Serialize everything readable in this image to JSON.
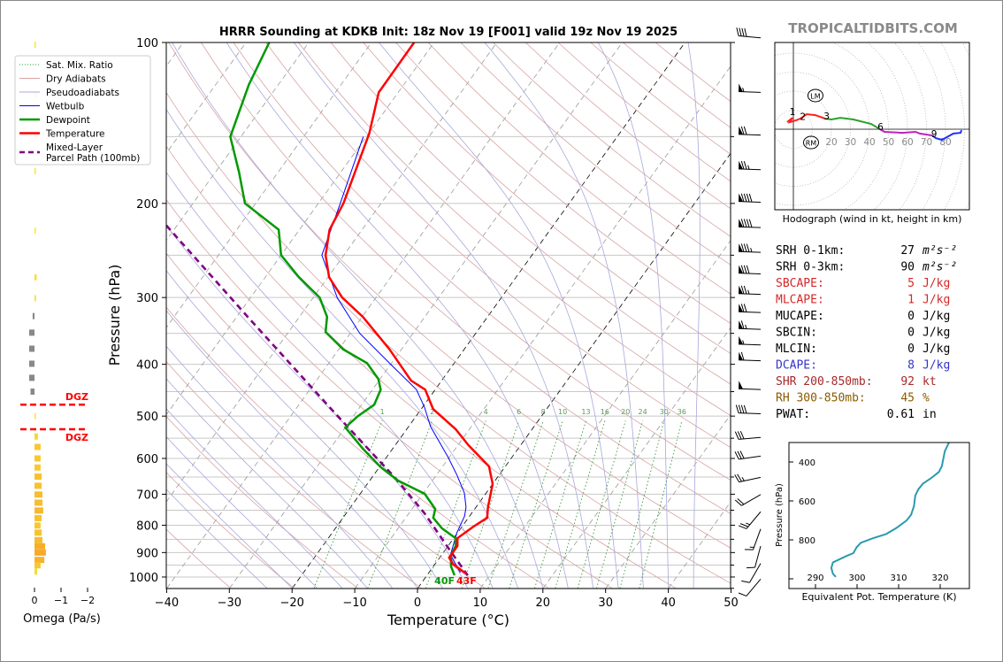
{
  "title": "HRRR Sounding at KDKB Init: 18z Nov 19 [F001] valid 19z Nov 19 2025",
  "watermark": "TROPICALTIDBITS.COM",
  "legend": [
    {
      "label": "Sat. Mix. Ratio",
      "color": "#2ca02c",
      "style": "dotted"
    },
    {
      "label": "Dry Adiabats",
      "color": "#d9a3a3",
      "style": "solid"
    },
    {
      "label": "Pseudoadiabats",
      "color": "#a8a8dc",
      "style": "solid"
    },
    {
      "label": "Wetbulb",
      "color": "#0000ff",
      "style": "thin"
    },
    {
      "label": "Dewpoint",
      "color": "#009900",
      "style": "thick"
    },
    {
      "label": "Temperature",
      "color": "#ff0000",
      "style": "thick"
    },
    {
      "label": "Mixed-Layer",
      "label2": "Parcel Path (100mb)",
      "color": "#800080",
      "style": "dashed"
    }
  ],
  "stats": [
    {
      "label": "SRH 0-1km:",
      "value": "27",
      "unit": "m²s⁻²",
      "color": "#000000"
    },
    {
      "label": "SRH 0-3km:",
      "value": "90",
      "unit": "m²s⁻²",
      "color": "#000000"
    },
    {
      "label": "SBCAPE:",
      "value": "5",
      "unit": "J/kg",
      "color": "#d62728"
    },
    {
      "label": "MLCAPE:",
      "value": "1",
      "unit": "J/kg",
      "color": "#d62728"
    },
    {
      "label": "MUCAPE:",
      "value": "0",
      "unit": "J/kg",
      "color": "#000000"
    },
    {
      "label": "SBCIN:",
      "value": "0",
      "unit": "J/kg",
      "color": "#000000"
    },
    {
      "label": "MLCIN:",
      "value": "0",
      "unit": "J/kg",
      "color": "#000000"
    },
    {
      "label": "DCAPE:",
      "value": "8",
      "unit": "J/kg",
      "color": "#3333cc"
    },
    {
      "label": "SHR 200-850mb:",
      "value": "92",
      "unit": "kt",
      "color": "#a52a2a"
    },
    {
      "label": "RH 300-850mb:",
      "value": "45",
      "unit": "%",
      "color": "#8b5a00"
    },
    {
      "label": "PWAT:",
      "value": "0.61",
      "unit": "in",
      "color": "#000000"
    }
  ],
  "chart_data": {
    "skewt": {
      "type": "line",
      "xlabel": "Temperature (°C)",
      "ylabel": "Pressure (hPa)",
      "xlim": [
        -40,
        50
      ],
      "ylim": [
        1050,
        100
      ],
      "xticks": [
        "−40",
        "−30",
        "−20",
        "−10",
        "0",
        "10",
        "20",
        "30",
        "40",
        "50"
      ],
      "xtick_values": [
        -40,
        -30,
        -20,
        -10,
        0,
        10,
        20,
        30,
        40,
        50
      ],
      "yticks": [
        100,
        200,
        300,
        400,
        500,
        600,
        700,
        800,
        900,
        1000
      ],
      "mixing_ratio_labels": [
        1,
        2,
        4,
        6,
        8,
        10,
        13,
        16,
        20,
        24,
        30,
        36
      ],
      "surface_td_label": "40F",
      "surface_t_label": "43F",
      "temperature": [
        [
          100,
          -63.2
        ],
        [
          124,
          -63.1
        ],
        [
          148,
          -59.9
        ],
        [
          200,
          -56.0
        ],
        [
          224,
          -55.2
        ],
        [
          250,
          -52.9
        ],
        [
          275,
          -49.8
        ],
        [
          300,
          -45.4
        ],
        [
          326,
          -39.9
        ],
        [
          375,
          -31.9
        ],
        [
          429,
          -24.9
        ],
        [
          446,
          -21.6
        ],
        [
          485,
          -18.1
        ],
        [
          529,
          -12.2
        ],
        [
          567,
          -8.3
        ],
        [
          621,
          -2.6
        ],
        [
          670,
          0.0
        ],
        [
          740,
          1.9
        ],
        [
          775,
          3.0
        ],
        [
          805,
          1.8
        ],
        [
          846,
          0.6
        ],
        [
          875,
          1.5
        ],
        [
          920,
          1.5
        ],
        [
          945,
          2.8
        ],
        [
          985,
          6.0
        ]
      ],
      "dewpoint": [
        [
          100,
          -86.3
        ],
        [
          120,
          -84.7
        ],
        [
          150,
          -81.7
        ],
        [
          175,
          -76.2
        ],
        [
          200,
          -71.7
        ],
        [
          224,
          -63.3
        ],
        [
          250,
          -60.0
        ],
        [
          274,
          -54.8
        ],
        [
          300,
          -49.0
        ],
        [
          326,
          -45.6
        ],
        [
          348,
          -44.1
        ],
        [
          375,
          -39.3
        ],
        [
          398,
          -33.9
        ],
        [
          426,
          -30.3
        ],
        [
          446,
          -28.7
        ],
        [
          476,
          -28.0
        ],
        [
          500,
          -29.3
        ],
        [
          525,
          -30.0
        ],
        [
          575,
          -24.8
        ],
        [
          623,
          -19.8
        ],
        [
          660,
          -15.5
        ],
        [
          699,
          -9.7
        ],
        [
          746,
          -6.3
        ],
        [
          775,
          -5.6
        ],
        [
          811,
          -3.0
        ],
        [
          846,
          0.3
        ],
        [
          875,
          1.2
        ],
        [
          909,
          1.5
        ],
        [
          955,
          2.8
        ],
        [
          993,
          4.4
        ]
      ],
      "wetbulb": [
        [
          150,
          -60.5
        ],
        [
          200,
          -56.5
        ],
        [
          250,
          -53.5
        ],
        [
          300,
          -46.2
        ],
        [
          350,
          -38.5
        ],
        [
          400,
          -30.0
        ],
        [
          446,
          -23.0
        ],
        [
          481,
          -19.7
        ],
        [
          523,
          -16.5
        ],
        [
          598,
          -10.1
        ],
        [
          645,
          -6.7
        ],
        [
          696,
          -3.5
        ],
        [
          740,
          -1.6
        ],
        [
          769,
          -0.8
        ],
        [
          827,
          -0.1
        ],
        [
          909,
          1.4
        ],
        [
          981,
          5.0
        ]
      ],
      "parcel": [
        [
          220,
          -81.7
        ],
        [
          329,
          -57.7
        ],
        [
          496,
          -33.0
        ],
        [
          653,
          -16.2
        ],
        [
          760,
          -7.5
        ],
        [
          885,
          0.4
        ],
        [
          993,
          6.5
        ]
      ],
      "dgz": [
        476,
        529
      ],
      "dgz_label": "DGZ",
      "wind_barbs": [
        [
          98,
          40,
          275
        ],
        [
          124,
          55,
          272
        ],
        [
          149,
          70,
          272
        ],
        [
          173,
          75,
          272
        ],
        [
          199,
          90,
          272
        ],
        [
          222,
          90,
          272
        ],
        [
          247,
          85,
          272
        ],
        [
          271,
          80,
          272
        ],
        [
          296,
          75,
          272
        ],
        [
          320,
          70,
          272
        ],
        [
          344,
          65,
          272
        ],
        [
          368,
          55,
          272
        ],
        [
          394,
          60,
          272
        ],
        [
          446,
          50,
          272
        ],
        [
          495,
          40,
          272
        ],
        [
          548,
          30,
          265
        ],
        [
          594,
          30,
          262
        ],
        [
          651,
          25,
          258
        ],
        [
          701,
          20,
          240
        ],
        [
          755,
          25,
          220
        ],
        [
          813,
          15,
          200
        ],
        [
          875,
          10,
          195
        ],
        [
          943,
          10,
          210
        ],
        [
          1009,
          10,
          220
        ]
      ]
    },
    "omega": {
      "type": "bar",
      "xlabel": "Omega (Pa/s)",
      "xticks": [
        "0",
        "−1",
        "−2"
      ],
      "xtick_values": [
        0,
        -1,
        -2
      ],
      "levels": [
        [
          101,
          -0.05
        ],
        [
          125,
          -0.08
        ],
        [
          149,
          -0.06
        ],
        [
          174,
          -0.05
        ],
        [
          225,
          -0.03
        ],
        [
          275,
          -0.08
        ],
        [
          301,
          -0.06
        ],
        [
          325,
          0.07
        ],
        [
          349,
          0.2
        ],
        [
          374,
          0.2
        ],
        [
          399,
          0.2
        ],
        [
          424,
          0.2
        ],
        [
          450,
          0.15
        ],
        [
          500,
          -0.05
        ],
        [
          546,
          -0.13
        ],
        [
          571,
          -0.23
        ],
        [
          600,
          -0.23
        ],
        [
          624,
          -0.23
        ],
        [
          649,
          -0.27
        ],
        [
          675,
          -0.27
        ],
        [
          701,
          -0.3
        ],
        [
          726,
          -0.3
        ],
        [
          751,
          -0.33
        ],
        [
          776,
          -0.27
        ],
        [
          801,
          -0.23
        ],
        [
          826,
          -0.27
        ],
        [
          853,
          -0.3
        ],
        [
          876,
          -0.4
        ],
        [
          900,
          -0.43
        ],
        [
          929,
          -0.37
        ],
        [
          951,
          -0.23
        ],
        [
          977,
          -0.1
        ]
      ]
    },
    "hodograph": {
      "type": "line",
      "caption": "Hodograph (wind in kt, height in km)",
      "ring_labels": [
        "20",
        "30",
        "40",
        "50",
        "60",
        "70",
        "80"
      ],
      "ring_values": [
        20,
        30,
        40,
        50,
        60,
        70,
        80
      ],
      "segments": [
        {
          "km": "0-3",
          "color": "#ff2020",
          "points": [
            [
              -3.3,
              3.7
            ],
            [
              -0.5,
              6.0
            ],
            [
              -1.9,
              3.7
            ],
            [
              1.4,
              4.7
            ],
            [
              3.7,
              5.6
            ],
            [
              7.0,
              7.9
            ],
            [
              11.6,
              7.4
            ],
            [
              16.7,
              5.6
            ]
          ]
        },
        {
          "km": "3-6",
          "color": "#2ca02c",
          "points": [
            [
              16.7,
              5.6
            ],
            [
              20.0,
              5.1
            ],
            [
              24.7,
              6.0
            ],
            [
              31.6,
              5.1
            ],
            [
              40.9,
              2.8
            ],
            [
              45.6,
              0.0
            ]
          ]
        },
        {
          "km": "6-9",
          "color": "#c020c0",
          "points": [
            [
              45.6,
              0.0
            ],
            [
              47.9,
              -1.4
            ],
            [
              57.2,
              -1.9
            ],
            [
              64.2,
              -1.4
            ],
            [
              66.5,
              -2.3
            ],
            [
              73.0,
              -3.3
            ]
          ]
        },
        {
          "km": "9-12",
          "color": "#2030ff",
          "points": [
            [
              73.0,
              -3.3
            ],
            [
              74.9,
              -4.7
            ],
            [
              78.1,
              -5.6
            ],
            [
              84.2,
              -2.3
            ],
            [
              87.9,
              -1.9
            ],
            [
              88.4,
              -0.5
            ]
          ]
        }
      ],
      "height_labels": [
        {
          "km": "1",
          "u": -0.5,
          "v": 7.5
        },
        {
          "km": "2",
          "u": 5.0,
          "v": 5.0
        },
        {
          "km": "3",
          "u": 17.5,
          "v": 5.2
        },
        {
          "km": "6",
          "u": 45.8,
          "v": -0.5
        },
        {
          "km": "9",
          "u": 74.0,
          "v": -4.2
        }
      ],
      "storm_motion": [
        {
          "label": "LM",
          "u": 11.6,
          "v": 17.7
        },
        {
          "label": "RM",
          "u": 9.3,
          "v": -7.0
        }
      ]
    },
    "theta_e": {
      "type": "line",
      "xlabel": "Equivalent Pot. Temperature (K)",
      "ylabel": "Pressure (hPa)",
      "xticks": [
        290,
        300,
        310,
        320
      ],
      "yticks": [
        400,
        600,
        800
      ],
      "color": "#2a9aaf",
      "points": [
        [
          300,
          322.1
        ],
        [
          345,
          321.1
        ],
        [
          421,
          320.4
        ],
        [
          451,
          319.7
        ],
        [
          482,
          317.9
        ],
        [
          512,
          315.8
        ],
        [
          542,
          314.7
        ],
        [
          573,
          314.0
        ],
        [
          626,
          313.7
        ],
        [
          671,
          313.0
        ],
        [
          701,
          311.9
        ],
        [
          740,
          309.4
        ],
        [
          770,
          307.0
        ],
        [
          792,
          303.8
        ],
        [
          815,
          300.9
        ],
        [
          838,
          299.9
        ],
        [
          868,
          299.1
        ],
        [
          883,
          297.4
        ],
        [
          916,
          294.2
        ],
        [
          944,
          293.8
        ],
        [
          974,
          294.2
        ],
        [
          990,
          294.9
        ]
      ]
    }
  }
}
